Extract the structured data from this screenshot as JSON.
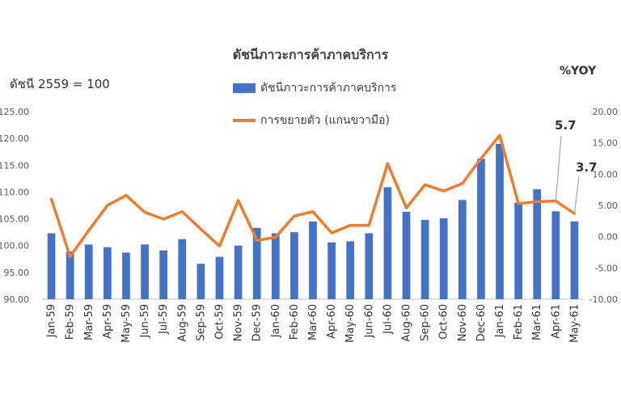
{
  "chart_data": {
    "type": "bar+line",
    "title": "ดัชนีภาวะการค้าภาคบริการ",
    "left_axis_label": "ดัชนี 2559 = 100",
    "right_axis_label": "%YOY",
    "categories": [
      "Jan-59",
      "Feb-59",
      "Mar-59",
      "Apr-59",
      "May-59",
      "Jun-59",
      "Jul-59",
      "Aug-59",
      "Sep-59",
      "Oct-59",
      "Nov-59",
      "Dec-59",
      "Jan-60",
      "Feb-60",
      "Mar-60",
      "Apr-60",
      "May-60",
      "Jun-60",
      "Jul-60",
      "Aug-60",
      "Sep-60",
      "Oct-60",
      "Nov-60",
      "Dec-60",
      "Jan-61",
      "Feb-61",
      "Mar-61",
      "Apr-61",
      "May-61"
    ],
    "left_axis": {
      "min": 90,
      "max": 125,
      "step": 5,
      "tick_labels": [
        "90.00",
        "95.00",
        "100.00",
        "105.00",
        "110.00",
        "115.00",
        "120.00",
        "125.00"
      ]
    },
    "right_axis": {
      "min": -10,
      "max": 20,
      "step": 5,
      "tick_labels": [
        "-10.00",
        "-5.00",
        "0.00",
        "5.00",
        "10.00",
        "15.00",
        "20.00"
      ]
    },
    "series": [
      {
        "name": "ดัชนีภาวะการค้าภาคบริการ",
        "type": "bar",
        "axis": "left",
        "color": "#4472c4",
        "values": [
          102.3,
          98.9,
          100.2,
          99.7,
          98.7,
          100.2,
          99.1,
          101.2,
          96.6,
          97.9,
          100.0,
          103.3,
          102.3,
          102.5,
          104.5,
          100.6,
          100.8,
          102.3,
          110.9,
          106.3,
          104.8,
          105.1,
          108.5,
          116.2,
          119.0,
          108.0,
          110.5,
          106.4,
          104.5
        ]
      },
      {
        "name": "การขยายตัว (แกนขวามือ)",
        "type": "line",
        "axis": "right",
        "color": "#ed7d31",
        "values": [
          6.0,
          -3.2,
          1.0,
          5.0,
          6.6,
          3.9,
          2.8,
          4.0,
          1.2,
          -1.5,
          5.8,
          -0.6,
          -0.1,
          3.3,
          4.0,
          0.6,
          1.8,
          1.8,
          11.7,
          4.6,
          8.3,
          7.3,
          8.5,
          12.5,
          16.2,
          5.3,
          5.6,
          5.7,
          3.7
        ]
      }
    ],
    "annotations": [
      {
        "label": "5.7",
        "category": "Apr-61"
      },
      {
        "label": "3.7",
        "category": "May-61"
      }
    ],
    "legend": "top-center",
    "grid": false
  }
}
